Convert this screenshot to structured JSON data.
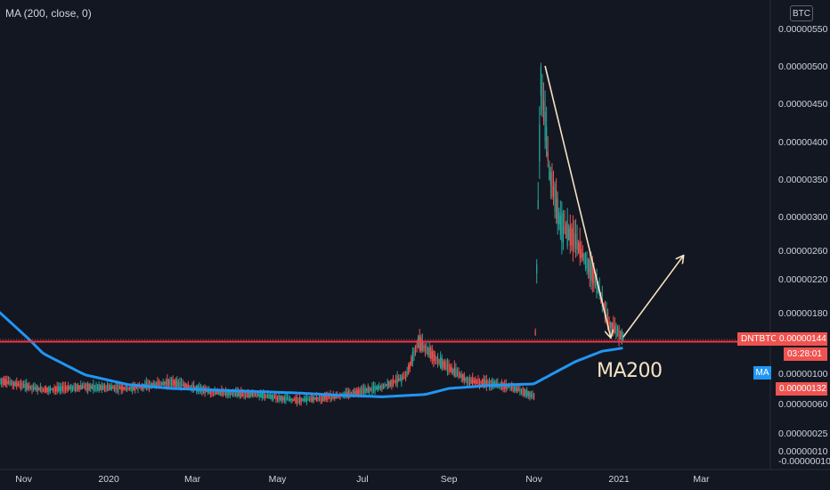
{
  "legend": {
    "indicator": "MA (200, close, 0)"
  },
  "unit_badge": "BTC",
  "price_tags": {
    "symbol": "DNTBTC",
    "last_price": "0.00000144",
    "countdown": "03:28:01",
    "ma_label": "MA",
    "ma_price": "0.00000132"
  },
  "annotation": "MA200",
  "colors": {
    "background": "#131722",
    "up": "#26a69a",
    "down": "#ef5350",
    "ma_line": "#2196f3",
    "support_line": "#f23645",
    "arrows": "#f5e3c2"
  },
  "chart_data": {
    "type": "line",
    "symbol": "DNTBTC",
    "title": "",
    "xlabel": "",
    "ylabel": "",
    "y_scale": "log",
    "y_ticks": [
      "0.00000550",
      "0.00000500",
      "0.00000450",
      "0.00000400",
      "0.00000350",
      "0.00000300",
      "0.00000260",
      "0.00000220",
      "0.00000180",
      "0.00000144",
      "0.00000100",
      "0.00000060",
      "0.00000025",
      "0.00000010",
      "-0.00000010"
    ],
    "x_ticks": [
      "Nov",
      "2020",
      "Mar",
      "May",
      "Jul",
      "Sep",
      "Nov",
      "2021",
      "Mar"
    ],
    "x_range": [
      "2019-10-15",
      "2021-03-25"
    ],
    "series": [
      {
        "name": "MA (200, close, 0)",
        "dates": [
          "2019-10-15",
          "2019-11-15",
          "2019-12-15",
          "2020-01-15",
          "2020-02-15",
          "2020-03-15",
          "2020-04-15",
          "2020-05-15",
          "2020-06-15",
          "2020-07-15",
          "2020-08-15",
          "2020-09-01",
          "2020-10-01",
          "2020-11-01",
          "2020-11-15",
          "2020-12-01",
          "2020-12-20",
          "2021-01-04"
        ],
        "values": [
          1.8e-06,
          1.25e-06,
          9.8e-07,
          8.5e-07,
          8e-07,
          7.8e-07,
          7.6e-07,
          7.4e-07,
          7.1e-07,
          6.9e-07,
          7.2e-07,
          8e-07,
          8.4e-07,
          8.6e-07,
          1e-06,
          1.15e-06,
          1.28e-06,
          1.32e-06
        ]
      },
      {
        "name": "DNTBTC",
        "dates": [
          "2019-10-15",
          "2019-11-15",
          "2019-12-15",
          "2020-01-15",
          "2020-02-15",
          "2020-03-15",
          "2020-04-15",
          "2020-05-15",
          "2020-06-15",
          "2020-07-15",
          "2020-08-01",
          "2020-08-10",
          "2020-08-25",
          "2020-09-15",
          "2020-10-15",
          "2020-11-01",
          "2020-11-06",
          "2020-11-12",
          "2020-11-20",
          "2020-12-01",
          "2020-12-15",
          "2020-12-25",
          "2021-01-04"
        ],
        "values": [
          9e-07,
          7.8e-07,
          8.2e-07,
          8e-07,
          8.8e-07,
          7.5e-07,
          7.2e-07,
          6.4e-07,
          7e-07,
          8.2e-07,
          9.5e-07,
          1.4e-06,
          1.15e-06,
          9e-07,
          8.2e-07,
          7e-07,
          4.8e-06,
          3.6e-06,
          2.9e-06,
          2.7e-06,
          2.2e-06,
          1.65e-06,
          1.44e-06
        ]
      }
    ],
    "horizontal_line": 1.4e-06,
    "annotations": [
      {
        "type": "arrow",
        "from": [
          "2020-11-09",
          5e-06
        ],
        "to": [
          "2020-12-26",
          1.46e-06
        ]
      },
      {
        "type": "arrow",
        "from": [
          "2021-01-04",
          1.46e-06
        ],
        "to": [
          "2021-02-16",
          2.52e-06
        ]
      },
      {
        "type": "text",
        "text": "MA200",
        "at": [
          "2020-12-20",
          1.05e-06
        ]
      }
    ]
  }
}
